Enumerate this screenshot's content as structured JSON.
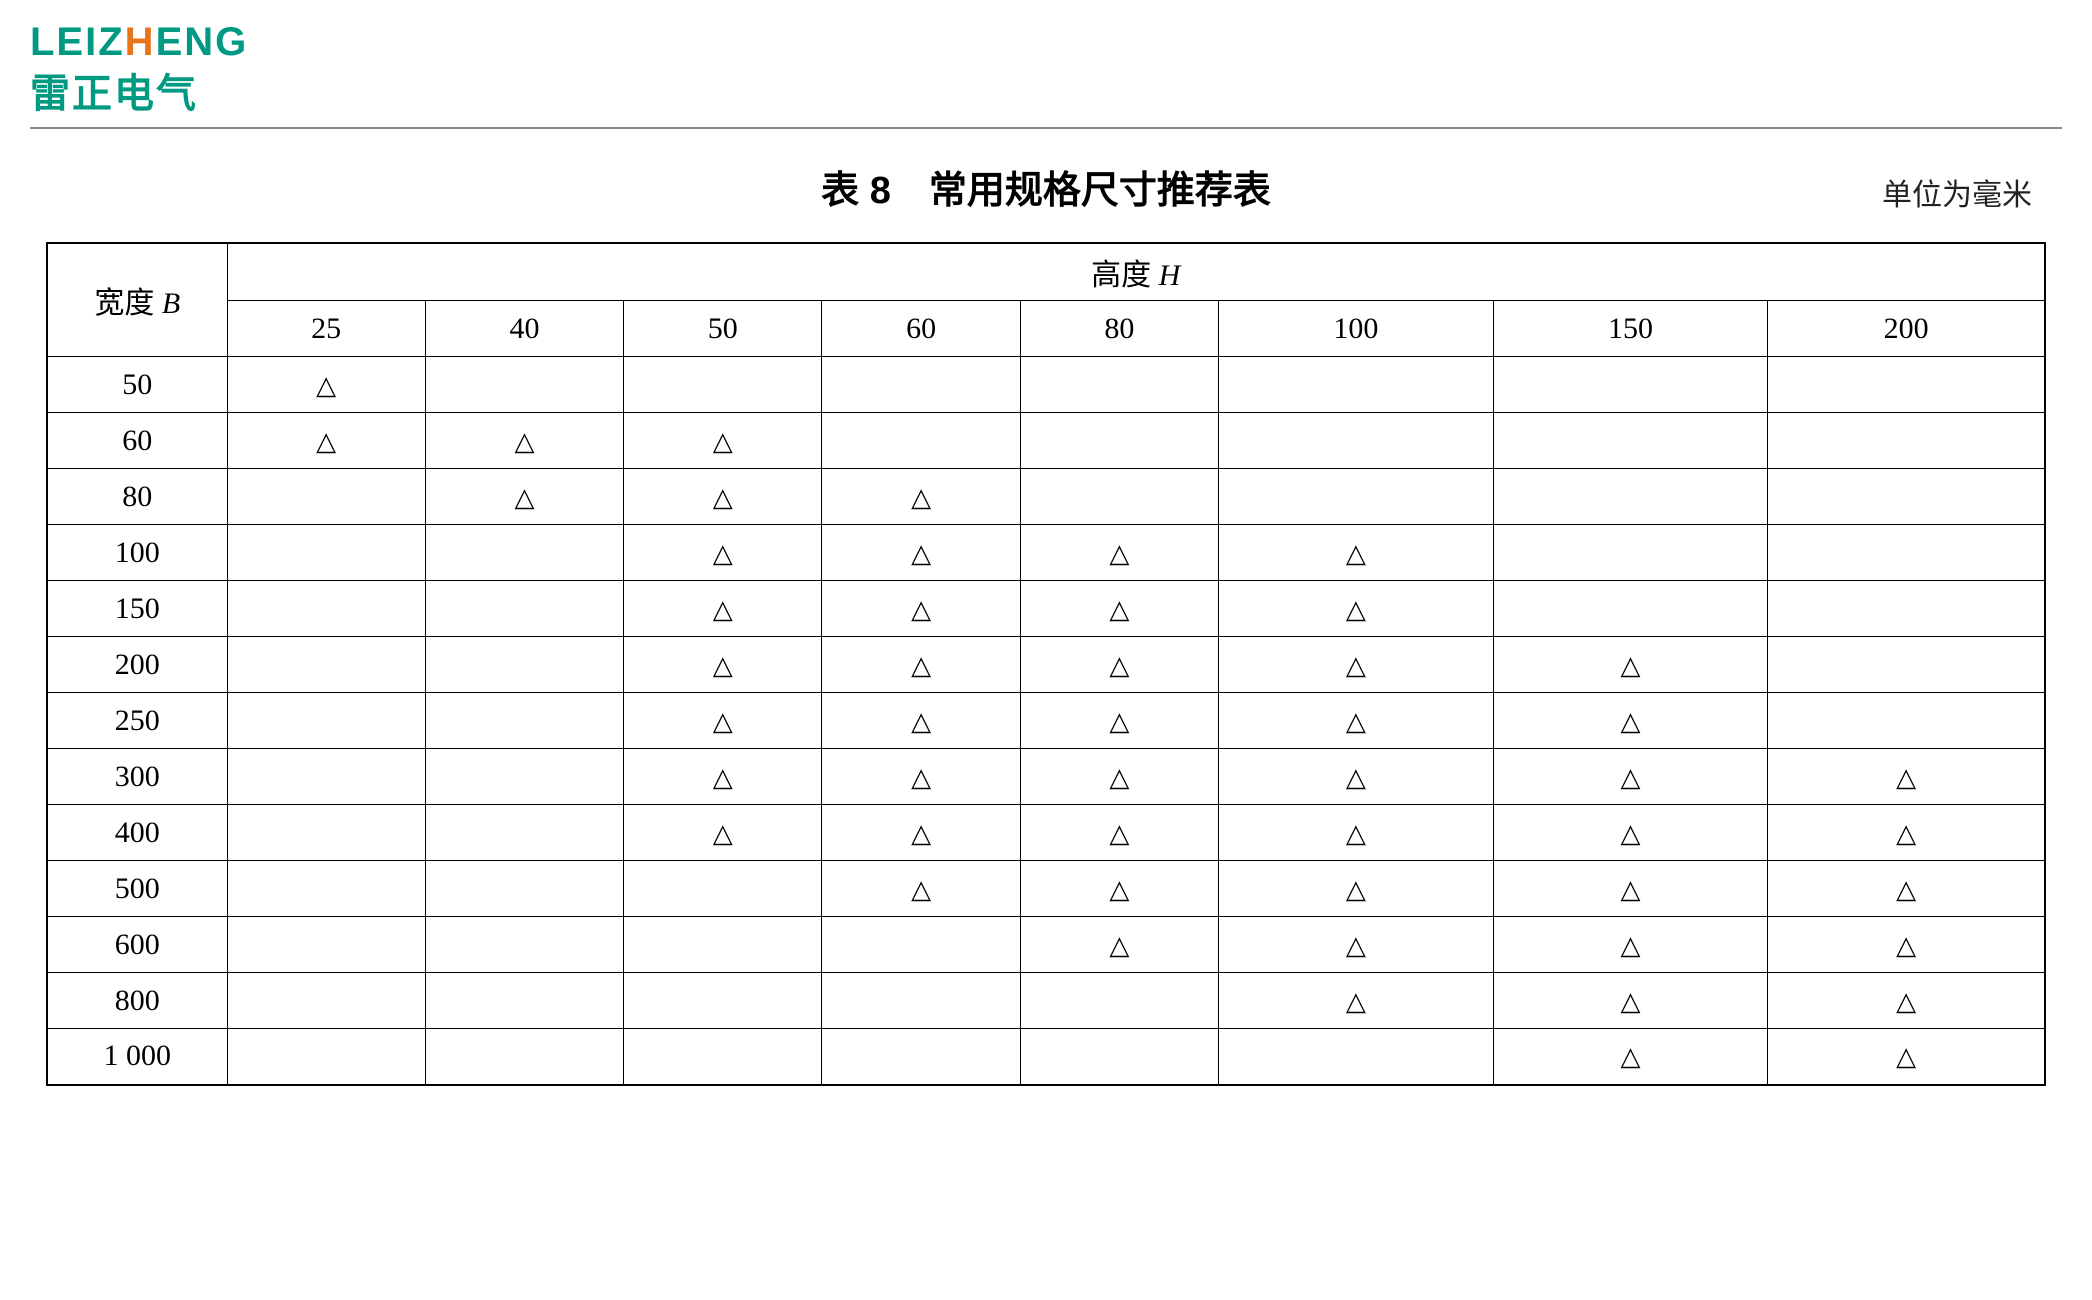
{
  "logo": {
    "en_pre": "LEIZ",
    "en_orange": "H",
    "en_post": "ENG",
    "cn": "雷正电气"
  },
  "title": "表 8　常用规格尺寸推荐表",
  "unit": "单位为毫米",
  "colors": {
    "brand_teal": "#009982",
    "brand_orange": "#e8751a",
    "text": "#000000",
    "background": "#ffffff",
    "divider": "#888888"
  },
  "table": {
    "type": "table",
    "row_header_label_prefix": "宽度 ",
    "row_header_label_var": "B",
    "col_header_label_prefix": "高度 ",
    "col_header_label_var": "H",
    "mark_glyph": "△",
    "columns": [
      "25",
      "40",
      "50",
      "60",
      "80",
      "100",
      "150",
      "200"
    ],
    "rows": [
      {
        "label": "50",
        "cells": [
          true,
          false,
          false,
          false,
          false,
          false,
          false,
          false
        ]
      },
      {
        "label": "60",
        "cells": [
          true,
          true,
          true,
          false,
          false,
          false,
          false,
          false
        ]
      },
      {
        "label": "80",
        "cells": [
          false,
          true,
          true,
          true,
          false,
          false,
          false,
          false
        ]
      },
      {
        "label": "100",
        "cells": [
          false,
          false,
          true,
          true,
          true,
          true,
          false,
          false
        ]
      },
      {
        "label": "150",
        "cells": [
          false,
          false,
          true,
          true,
          true,
          true,
          false,
          false
        ]
      },
      {
        "label": "200",
        "cells": [
          false,
          false,
          true,
          true,
          true,
          true,
          true,
          false
        ]
      },
      {
        "label": "250",
        "cells": [
          false,
          false,
          true,
          true,
          true,
          true,
          true,
          false
        ]
      },
      {
        "label": "300",
        "cells": [
          false,
          false,
          true,
          true,
          true,
          true,
          true,
          true
        ]
      },
      {
        "label": "400",
        "cells": [
          false,
          false,
          true,
          true,
          true,
          true,
          true,
          true
        ]
      },
      {
        "label": "500",
        "cells": [
          false,
          false,
          false,
          true,
          true,
          true,
          true,
          true
        ]
      },
      {
        "label": "600",
        "cells": [
          false,
          false,
          false,
          false,
          true,
          true,
          true,
          true
        ]
      },
      {
        "label": "800",
        "cells": [
          false,
          false,
          false,
          false,
          false,
          true,
          true,
          true
        ]
      },
      {
        "label": "1 000",
        "cells": [
          false,
          false,
          false,
          false,
          false,
          false,
          true,
          true
        ]
      }
    ]
  }
}
